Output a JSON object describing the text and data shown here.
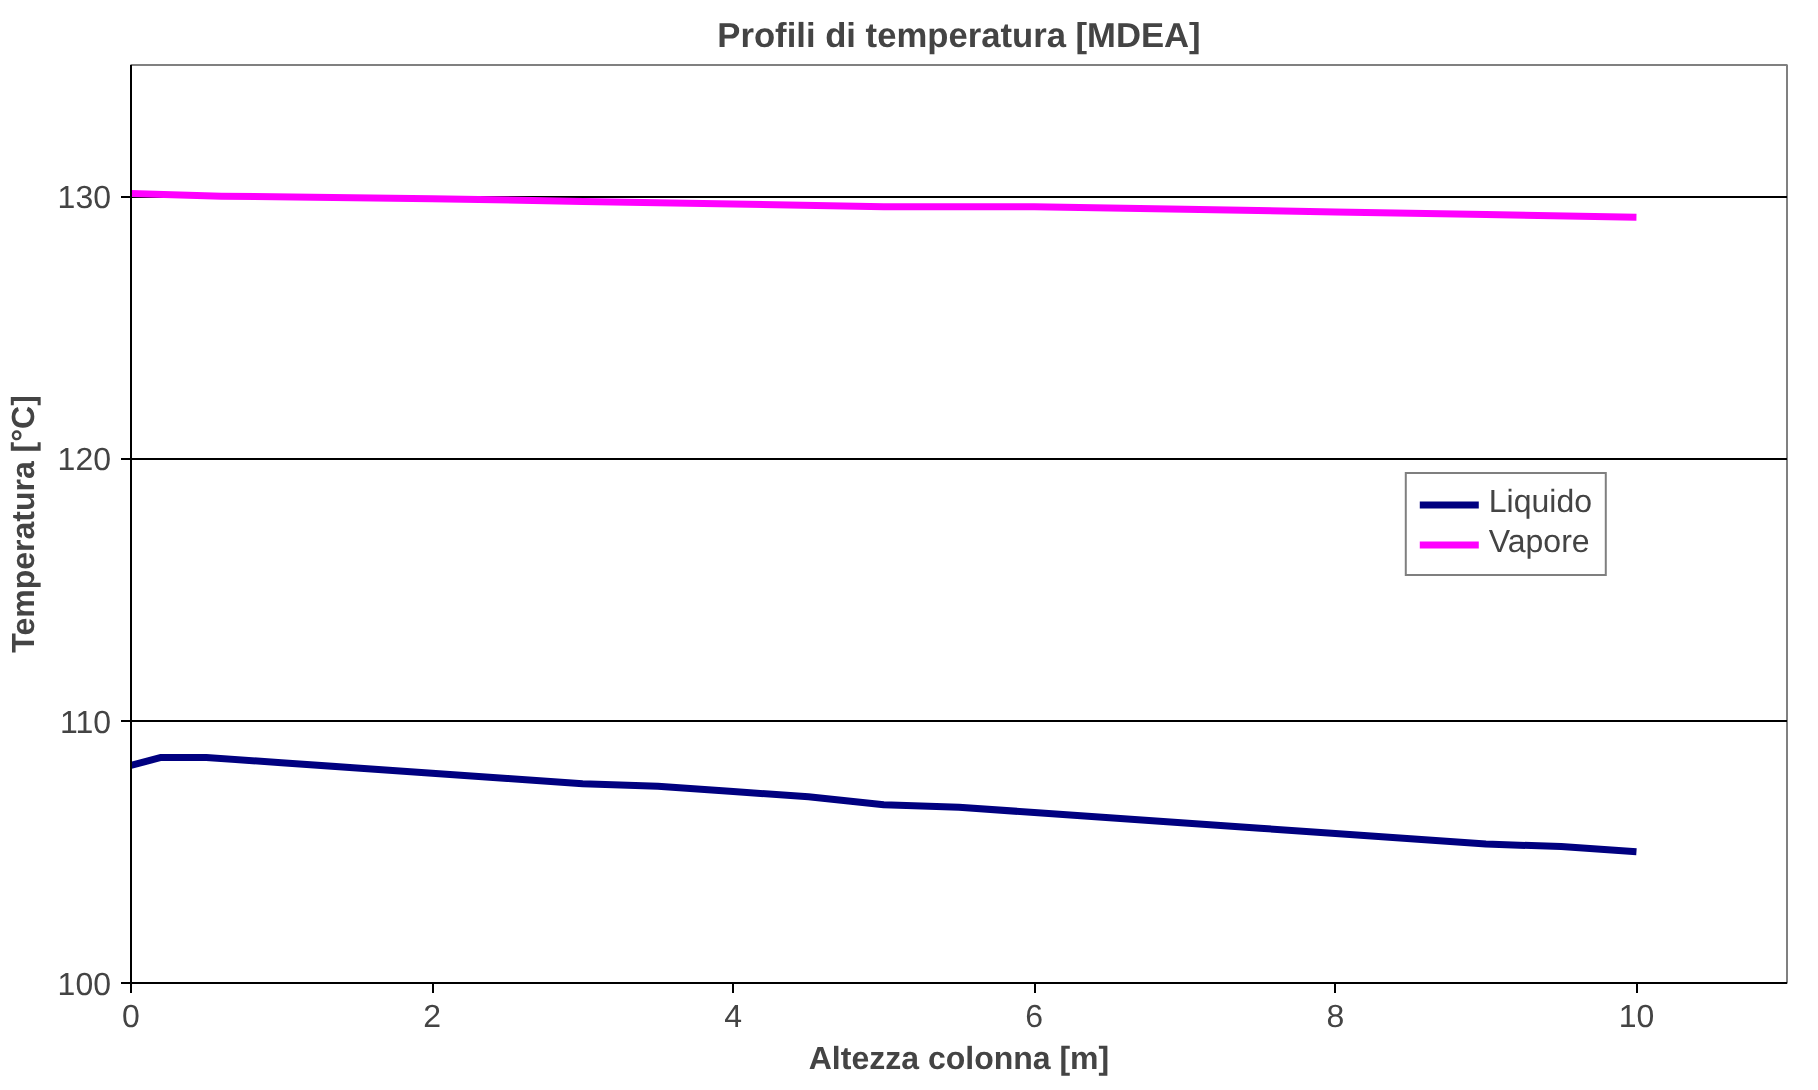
{
  "chart_data": {
    "type": "line",
    "title": "Profili di temperatura [MDEA]",
    "xlabel": "Altezza colonna [m]",
    "ylabel": "Temperatura [°C]",
    "xlim": [
      0,
      11
    ],
    "xticks": [
      0,
      2,
      4,
      6,
      8,
      10
    ],
    "ylim": [
      100,
      135
    ],
    "yticks": [
      100,
      110,
      120,
      130
    ],
    "grid": "y",
    "legend": "right",
    "marker": "none",
    "line_style": "solid",
    "series": [
      {
        "name": "Liquido",
        "color": "#000080",
        "x": [
          0,
          0.2,
          0.5,
          1,
          1.5,
          2,
          2.5,
          3,
          3.5,
          4,
          4.5,
          5,
          5.5,
          6,
          6.5,
          7,
          7.5,
          8,
          8.5,
          9,
          9.5,
          10
        ],
        "values": [
          108.3,
          108.6,
          108.6,
          108.4,
          108.2,
          108.0,
          107.8,
          107.6,
          107.5,
          107.3,
          107.1,
          106.8,
          106.7,
          106.5,
          106.3,
          106.1,
          105.9,
          105.7,
          105.5,
          105.3,
          105.2,
          105.0
        ]
      },
      {
        "name": "Vapore",
        "color": "#ff00ff",
        "x": [
          0,
          0.6,
          2,
          3,
          4,
          5,
          6,
          7,
          8,
          9,
          10
        ],
        "values": [
          130.1,
          130.0,
          129.9,
          129.8,
          129.7,
          129.6,
          129.6,
          129.5,
          129.4,
          129.3,
          129.2
        ]
      }
    ]
  }
}
